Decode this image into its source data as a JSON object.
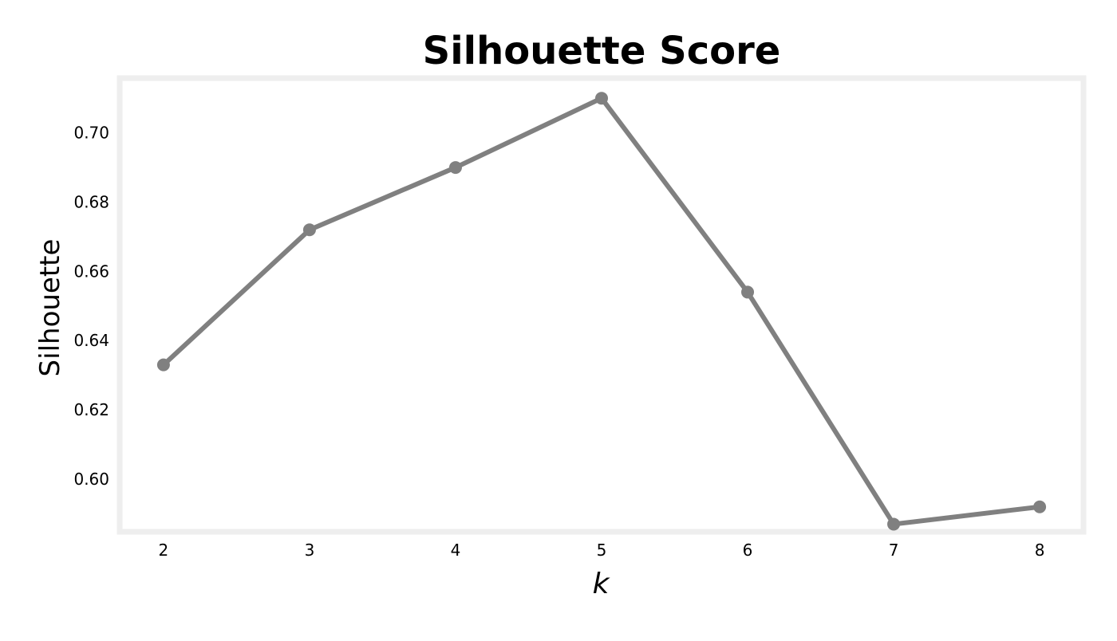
{
  "chart_data": {
    "type": "line",
    "title": "Silhouette Score",
    "xlabel": "k",
    "ylabel": "Silhouette",
    "x": [
      2,
      3,
      4,
      5,
      6,
      7,
      8
    ],
    "xticks": [
      "2",
      "3",
      "4",
      "5",
      "6",
      "7",
      "8"
    ],
    "yticks": [
      "0.60",
      "0.62",
      "0.64",
      "0.66",
      "0.68",
      "0.70"
    ],
    "series": [
      {
        "values": [
          0.633,
          0.672,
          0.69,
          0.71,
          0.654,
          0.587,
          0.592
        ],
        "color": "#808080",
        "marker": "circle"
      }
    ],
    "xlim": [
      1.7,
      8.3
    ],
    "ylim": [
      0.5848,
      0.7158
    ],
    "grid": false,
    "frame_color": "#eeeeee",
    "legend": "none"
  }
}
